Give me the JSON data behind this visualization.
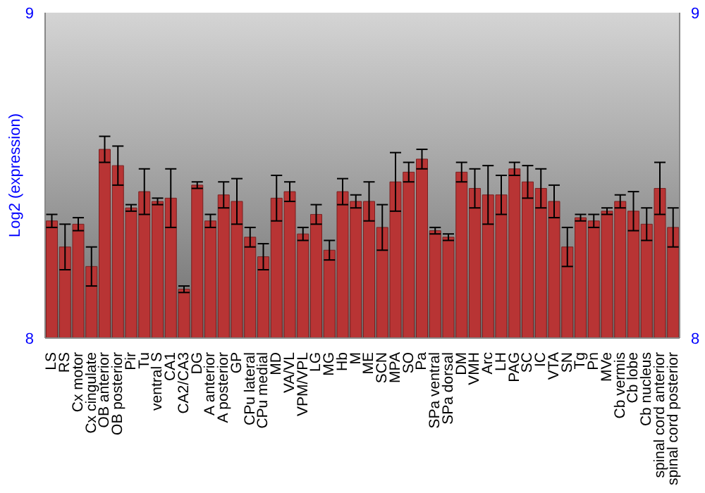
{
  "chart_data": {
    "type": "bar",
    "ylabel": "Log2 (expression)",
    "categories": [
      "LS",
      "RS",
      "Cx motor",
      "Cx cingulate",
      "OB anterior",
      "OB posterior",
      "Pir",
      "Tu",
      "ventral S",
      "CA1",
      "CA2/CA3",
      "DG",
      "A anterior",
      "A posterior",
      "GP",
      "CPu lateral",
      "CPu medial",
      "MD",
      "VA/VL",
      "VPM/VPL",
      "LG",
      "MG",
      "Hb",
      "M",
      "ME",
      "SCN",
      "MPA",
      "SO",
      "Pa",
      "SPa ventral",
      "SPa dorsal",
      "DM",
      "VMH",
      "Arc",
      "LH",
      "PAG",
      "SC",
      "IC",
      "VTA",
      "SN",
      "Tg",
      "Pn",
      "MVe",
      "Cb vermis",
      "Cb lobe",
      "Cb nucleus",
      "spinal cord anterior",
      "spinal cord posterior"
    ],
    "values": [
      8.36,
      8.28,
      8.35,
      8.22,
      8.58,
      8.53,
      8.4,
      8.45,
      8.42,
      8.43,
      8.15,
      8.47,
      8.36,
      8.44,
      8.42,
      8.31,
      8.25,
      8.43,
      8.45,
      8.32,
      8.38,
      8.27,
      8.45,
      8.42,
      8.42,
      8.34,
      8.48,
      8.51,
      8.55,
      8.33,
      8.31,
      8.51,
      8.46,
      8.44,
      8.44,
      8.52,
      8.48,
      8.46,
      8.42,
      8.28,
      8.37,
      8.36,
      8.39,
      8.42,
      8.39,
      8.35,
      8.46,
      8.34
    ],
    "errors": [
      0.02,
      0.07,
      0.02,
      0.06,
      0.04,
      0.06,
      0.01,
      0.07,
      0.01,
      0.09,
      0.01,
      0.01,
      0.02,
      0.04,
      0.07,
      0.03,
      0.04,
      0.07,
      0.03,
      0.02,
      0.03,
      0.03,
      0.04,
      0.02,
      0.06,
      0.07,
      0.09,
      0.03,
      0.03,
      0.01,
      0.01,
      0.03,
      0.06,
      0.09,
      0.06,
      0.02,
      0.05,
      0.06,
      0.05,
      0.06,
      0.01,
      0.02,
      0.01,
      0.02,
      0.06,
      0.05,
      0.08,
      0.06
    ],
    "color": "#b83434",
    "ylim": [
      8,
      9
    ],
    "yticks": [
      8,
      9
    ],
    "y2lim": [
      8,
      9
    ],
    "y2ticks": [
      8,
      9
    ]
  }
}
